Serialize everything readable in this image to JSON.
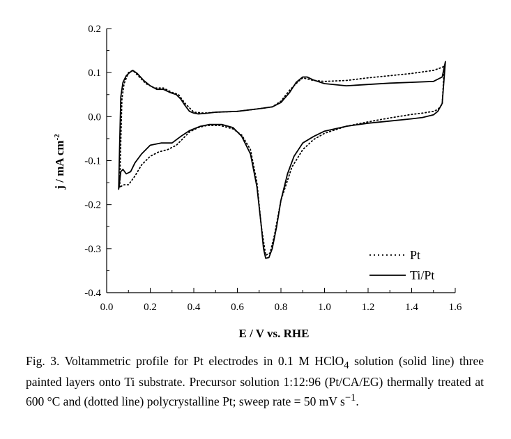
{
  "chart_data": {
    "type": "line",
    "xlabel": "E / V vs. RHE",
    "ylabel_main": "j / mA cm",
    "ylabel_exp": "-2",
    "xlim": [
      0.0,
      1.6
    ],
    "ylim": [
      -0.4,
      0.2
    ],
    "x_ticks": [
      0.0,
      0.2,
      0.4,
      0.6,
      0.8,
      1.0,
      1.2,
      1.4,
      1.6
    ],
    "x_tick_labels": [
      "0.0",
      "0.2",
      "0.4",
      "0.6",
      "0.8",
      "1.0",
      "1.2",
      "1.4",
      "1.6"
    ],
    "y_ticks": [
      -0.4,
      -0.3,
      -0.2,
      -0.1,
      0.0,
      0.1,
      0.2
    ],
    "y_tick_labels": [
      "-0.4",
      "-0.3",
      "-0.2",
      "-0.1",
      "0.0",
      "0.1",
      "0.2"
    ],
    "legend_position": "bottom-right",
    "grid": false,
    "series": [
      {
        "name": "Pt",
        "style": "dotted",
        "x": [
          0.06,
          0.062,
          0.07,
          0.08,
          0.1,
          0.12,
          0.14,
          0.18,
          0.22,
          0.26,
          0.3,
          0.33,
          0.36,
          0.4,
          0.45,
          0.5,
          0.6,
          0.7,
          0.76,
          0.8,
          0.84,
          0.88,
          0.9,
          0.95,
          1.0,
          1.1,
          1.2,
          1.3,
          1.4,
          1.5,
          1.54,
          1.55,
          1.54,
          1.52,
          1.5,
          1.45,
          1.4,
          1.3,
          1.2,
          1.1,
          1.0,
          0.95,
          0.9,
          0.85,
          0.8,
          0.77,
          0.75,
          0.73,
          0.71,
          0.69,
          0.66,
          0.62,
          0.58,
          0.52,
          0.46,
          0.42,
          0.38,
          0.35,
          0.32,
          0.28,
          0.24,
          0.2,
          0.16,
          0.13,
          0.1,
          0.08,
          0.06
        ],
        "y": [
          -0.16,
          -0.11,
          0.04,
          0.075,
          0.1,
          0.105,
          0.095,
          0.075,
          0.065,
          0.065,
          0.055,
          0.05,
          0.03,
          0.01,
          0.008,
          0.01,
          0.012,
          0.018,
          0.022,
          0.035,
          0.06,
          0.08,
          0.088,
          0.082,
          0.08,
          0.082,
          0.088,
          0.093,
          0.098,
          0.105,
          0.112,
          0.115,
          0.028,
          0.016,
          0.012,
          0.008,
          0.005,
          -0.003,
          -0.012,
          -0.022,
          -0.038,
          -0.052,
          -0.075,
          -0.115,
          -0.19,
          -0.27,
          -0.31,
          -0.315,
          -0.25,
          -0.15,
          -0.075,
          -0.042,
          -0.028,
          -0.02,
          -0.02,
          -0.025,
          -0.035,
          -0.05,
          -0.065,
          -0.075,
          -0.08,
          -0.09,
          -0.11,
          -0.135,
          -0.155,
          -0.155,
          -0.16
        ]
      },
      {
        "name": "Ti/Pt",
        "style": "solid",
        "x": [
          0.055,
          0.058,
          0.065,
          0.075,
          0.09,
          0.105,
          0.12,
          0.14,
          0.17,
          0.2,
          0.23,
          0.26,
          0.29,
          0.32,
          0.34,
          0.36,
          0.38,
          0.4,
          0.42,
          0.45,
          0.5,
          0.6,
          0.7,
          0.76,
          0.8,
          0.84,
          0.87,
          0.9,
          0.92,
          0.95,
          1.0,
          1.1,
          1.2,
          1.3,
          1.4,
          1.5,
          1.54,
          1.555,
          1.54,
          1.52,
          1.5,
          1.45,
          1.4,
          1.3,
          1.2,
          1.1,
          1.0,
          0.95,
          0.9,
          0.86,
          0.83,
          0.8,
          0.78,
          0.76,
          0.745,
          0.73,
          0.72,
          0.71,
          0.69,
          0.66,
          0.62,
          0.58,
          0.53,
          0.47,
          0.43,
          0.38,
          0.34,
          0.3,
          0.25,
          0.2,
          0.16,
          0.13,
          0.11,
          0.09,
          0.075,
          0.065,
          0.055
        ],
        "y": [
          -0.165,
          -0.1,
          0.045,
          0.078,
          0.093,
          0.1,
          0.105,
          0.098,
          0.082,
          0.07,
          0.062,
          0.062,
          0.055,
          0.05,
          0.04,
          0.025,
          0.012,
          0.008,
          0.006,
          0.007,
          0.01,
          0.012,
          0.018,
          0.022,
          0.032,
          0.055,
          0.078,
          0.09,
          0.09,
          0.083,
          0.075,
          0.07,
          0.073,
          0.076,
          0.078,
          0.08,
          0.09,
          0.125,
          0.03,
          0.012,
          0.004,
          -0.002,
          -0.005,
          -0.01,
          -0.015,
          -0.022,
          -0.033,
          -0.045,
          -0.06,
          -0.09,
          -0.13,
          -0.19,
          -0.25,
          -0.3,
          -0.32,
          -0.322,
          -0.3,
          -0.25,
          -0.16,
          -0.085,
          -0.045,
          -0.025,
          -0.018,
          -0.018,
          -0.022,
          -0.032,
          -0.045,
          -0.06,
          -0.06,
          -0.065,
          -0.085,
          -0.105,
          -0.125,
          -0.13,
          -0.12,
          -0.125,
          -0.165
        ]
      }
    ]
  },
  "caption": {
    "part1": "Fig. 3. Voltammetric profile for Pt electrodes in 0.1 M HClO",
    "sub4": "4",
    "part2": " solution (solid line) three painted layers onto Ti substrate. Precursor solution 1:12:96 (Pt/CA/EG) thermally treated at 600 °C and (dotted line) polycrystalline Pt; sweep rate = 50 mV s",
    "sup_neg1": "−1",
    "part3": "."
  }
}
